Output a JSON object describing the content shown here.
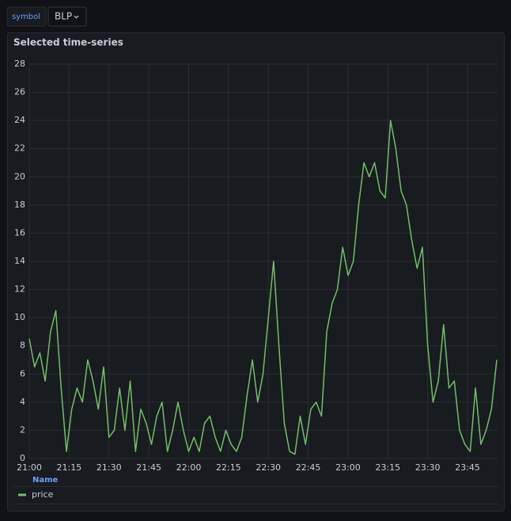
{
  "variable": {
    "label": "symbol",
    "value": "BLP"
  },
  "chart_data": {
    "type": "line",
    "title": "Selected time-series",
    "x": [
      "21:00",
      "21:02",
      "21:04",
      "21:06",
      "21:08",
      "21:10",
      "21:12",
      "21:14",
      "21:16",
      "21:18",
      "21:20",
      "21:22",
      "21:24",
      "21:26",
      "21:28",
      "21:30",
      "21:32",
      "21:34",
      "21:36",
      "21:38",
      "21:40",
      "21:42",
      "21:44",
      "21:46",
      "21:48",
      "21:50",
      "21:52",
      "21:54",
      "21:56",
      "21:58",
      "22:00",
      "22:02",
      "22:04",
      "22:06",
      "22:08",
      "22:10",
      "22:12",
      "22:14",
      "22:16",
      "22:18",
      "22:20",
      "22:22",
      "22:24",
      "22:26",
      "22:28",
      "22:30",
      "22:32",
      "22:34",
      "22:36",
      "22:38",
      "22:40",
      "22:42",
      "22:44",
      "22:46",
      "22:48",
      "22:50",
      "22:52",
      "22:54",
      "22:56",
      "22:58",
      "23:00",
      "23:02",
      "23:04",
      "23:06",
      "23:08",
      "23:10",
      "23:12",
      "23:14",
      "23:16",
      "23:18",
      "23:20",
      "23:22",
      "23:24",
      "23:26",
      "23:28",
      "23:30",
      "23:32",
      "23:34",
      "23:36",
      "23:38",
      "23:40",
      "23:42",
      "23:44",
      "23:46",
      "23:48",
      "23:50",
      "23:52",
      "23:54",
      "23:56"
    ],
    "series": [
      {
        "name": "price",
        "color": "#73bf69",
        "values": [
          8.5,
          6.5,
          7.5,
          5.5,
          9,
          10.5,
          5,
          0.5,
          3.5,
          5,
          4,
          7,
          5.5,
          3.5,
          6.5,
          1.5,
          2,
          5,
          2,
          5.5,
          0.5,
          3.5,
          2.5,
          1,
          3,
          4,
          0.5,
          2,
          4,
          2,
          0.5,
          1.5,
          0.5,
          2.5,
          3,
          1.5,
          0.5,
          2,
          1,
          0.5,
          1.5,
          4.5,
          7,
          4,
          6,
          10,
          14,
          8,
          2.5,
          0.5,
          0.3,
          3,
          1,
          3.5,
          4,
          3,
          9,
          11,
          12,
          15,
          13,
          14,
          18,
          21,
          20,
          21,
          19,
          18.5,
          24,
          22,
          19,
          18,
          15.5,
          13.5,
          15,
          8,
          4,
          5.5,
          9.5,
          5,
          5.5,
          2,
          1,
          0.5,
          5,
          1,
          2,
          3.5,
          7
        ]
      }
    ],
    "xlim": [
      "21:00",
      "23:56"
    ],
    "xticks": [
      "21:00",
      "21:15",
      "21:30",
      "21:45",
      "22:00",
      "22:15",
      "22:30",
      "22:45",
      "23:00",
      "23:15",
      "23:30",
      "23:45"
    ],
    "ylim": [
      0,
      28
    ],
    "yticks": [
      0,
      2,
      4,
      6,
      8,
      10,
      12,
      14,
      16,
      18,
      20,
      22,
      24,
      26,
      28
    ],
    "grid": true,
    "legend_header": "Name"
  }
}
